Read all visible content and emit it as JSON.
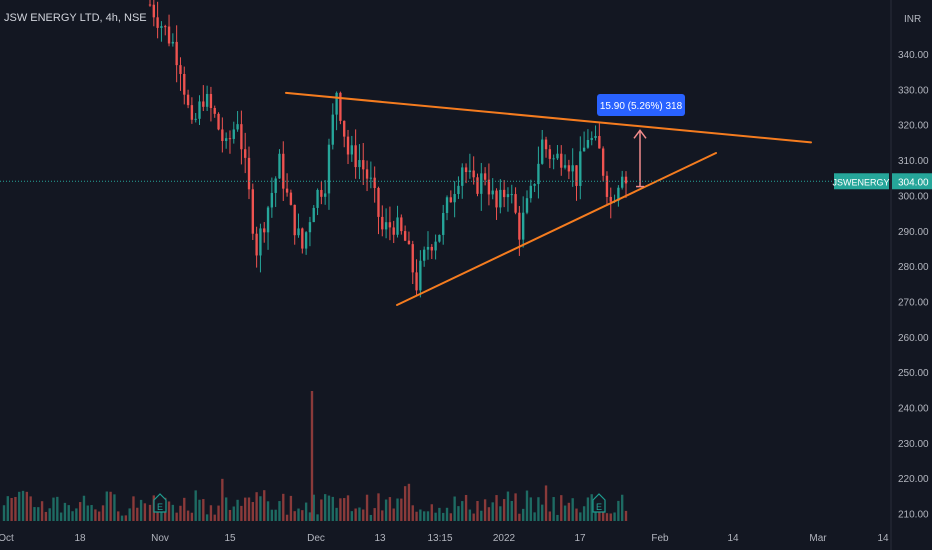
{
  "header": {
    "title": "JSW ENERGY LTD, 4h, NSE",
    "currency": "INR"
  },
  "colors": {
    "background": "#131722",
    "up": "#26a69a",
    "down": "#ef5350",
    "volume_up": "#1e6b63",
    "volume_down": "#8a3a3a",
    "trendline": "#f57c1f",
    "label_bg": "#2962ff",
    "measure": "#f28c8c",
    "axis_text": "#b2b5be",
    "price_line": "#26a69a"
  },
  "chart_data": {
    "type": "candlestick",
    "symbol": "JSWENERGY",
    "interval": "4h",
    "exchange": "NSE",
    "ylim": [
      207,
      352
    ],
    "y_ticks": [
      210,
      220,
      230,
      240,
      250,
      260,
      270,
      280,
      290,
      300,
      310,
      320,
      330,
      340
    ],
    "x_labels": [
      "Oct",
      "18",
      "Nov",
      "15",
      "Dec",
      "13",
      "13:15",
      "2022",
      "17",
      "Feb",
      "14",
      "Mar",
      "14"
    ],
    "last_price_label": "304.00",
    "last_price": 304,
    "symbol_label": "JSWENERGY",
    "measure_label": "15.90 (5.26%) 318",
    "trendlines": [
      {
        "name": "resistance",
        "points": [
          [
            "Nov-29",
            329
          ],
          [
            "Feb-24",
            315
          ]
        ]
      },
      {
        "name": "support",
        "points": [
          [
            "Dec-15",
            269
          ],
          [
            "Feb-09",
            312
          ]
        ]
      }
    ],
    "measurement": {
      "from": 302.5,
      "to": 318.4,
      "change": 15.9,
      "percent": 5.26
    },
    "earnings_markers": [
      {
        "label": "E",
        "date": "Nov-01"
      },
      {
        "label": "E",
        "date": "Jan-27"
      }
    ],
    "volume_spike_date": "Dec-01",
    "segments": [
      [
        0,
        354
      ],
      [
        6,
        343
      ],
      [
        8,
        337
      ],
      [
        11,
        318
      ],
      [
        14,
        328
      ],
      [
        17,
        322
      ],
      [
        20,
        313
      ],
      [
        23,
        322
      ],
      [
        26,
        300
      ],
      [
        28,
        285
      ],
      [
        31,
        297
      ],
      [
        34,
        309
      ],
      [
        37,
        295
      ],
      [
        40,
        285
      ],
      [
        43,
        299
      ],
      [
        46,
        304
      ],
      [
        49,
        330
      ],
      [
        52,
        312
      ],
      [
        55,
        310
      ],
      [
        58,
        303
      ],
      [
        61,
        290
      ],
      [
        64,
        292
      ],
      [
        67,
        287
      ],
      [
        70,
        275
      ],
      [
        73,
        286
      ],
      [
        76,
        290
      ],
      [
        79,
        300
      ],
      [
        82,
        309
      ],
      [
        85,
        302
      ],
      [
        88,
        306
      ],
      [
        91,
        296
      ],
      [
        94,
        303
      ],
      [
        97,
        290
      ],
      [
        100,
        300
      ],
      [
        103,
        315
      ],
      [
        106,
        310
      ],
      [
        109,
        312
      ],
      [
        112,
        305
      ],
      [
        115,
        317
      ],
      [
        118,
        312
      ],
      [
        121,
        298
      ],
      [
        124,
        308
      ],
      [
        125,
        304
      ]
    ]
  }
}
